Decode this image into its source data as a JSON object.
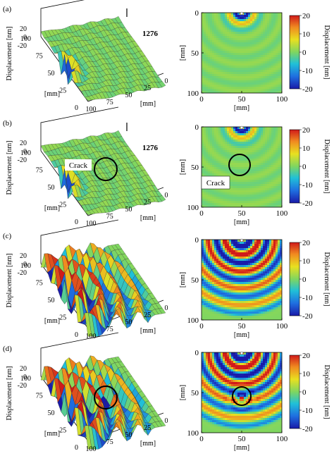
{
  "rows": [
    {
      "panel": "(a)",
      "surface_zlabel": "Displacement [nm]",
      "surface_z_ticks": [
        "20",
        "0",
        "-20"
      ],
      "surface_x_ticks": [
        "0",
        "25",
        "50",
        "75",
        "100"
      ],
      "surface_y_ticks": [
        "100",
        "75",
        "50",
        "25",
        "0"
      ],
      "surface_x_label": "[mm]",
      "surface_y_label": "[mm]",
      "peak_label": "1276",
      "crack_label": "",
      "map_x_ticks": [
        "0",
        "50",
        "100"
      ],
      "map_y_ticks": [
        "0",
        "50",
        "100"
      ],
      "map_xlabel": "[mm]",
      "map_ylabel": "[mm]",
      "cbar_ticks": [
        "20",
        "10",
        "0",
        "-10",
        "-20"
      ],
      "cbar_label": "Displacement [nm]"
    },
    {
      "panel": "(b)",
      "surface_zlabel": "Displacement [nm]",
      "surface_z_ticks": [
        "20",
        "0",
        "-20"
      ],
      "surface_x_ticks": [
        "0",
        "25",
        "50",
        "75",
        "100"
      ],
      "surface_y_ticks": [
        "100",
        "75",
        "50",
        "25",
        "0"
      ],
      "surface_x_label": "[mm]",
      "surface_y_label": "[mm]",
      "peak_label": "1276",
      "crack_label": "Crack",
      "map_x_ticks": [
        "0",
        "50",
        "100"
      ],
      "map_y_ticks": [
        "0",
        "50",
        "100"
      ],
      "map_xlabel": "[mm]",
      "map_ylabel": "[mm]",
      "map_crack_label": "Crack",
      "cbar_ticks": [
        "20",
        "10",
        "0",
        "-10",
        "-20"
      ],
      "cbar_label": "Displacement [nm]"
    },
    {
      "panel": "(c)",
      "surface_zlabel": "Displacement [nm]",
      "surface_z_ticks": [
        "20",
        "0",
        "-20"
      ],
      "surface_x_ticks": [
        "0",
        "25",
        "50",
        "75",
        "100"
      ],
      "surface_y_ticks": [
        "100",
        "75",
        "50",
        "25",
        "0"
      ],
      "surface_x_label": "[mm]",
      "surface_y_label": "[mm]",
      "peak_label": "",
      "crack_label": "",
      "map_x_ticks": [
        "0",
        "50",
        "100"
      ],
      "map_y_ticks": [
        "0",
        "50",
        "100"
      ],
      "map_xlabel": "[mm]",
      "map_ylabel": "[mm]",
      "cbar_ticks": [
        "20",
        "10",
        "0",
        "-10",
        "-20"
      ],
      "cbar_label": "Displacement [nm]"
    },
    {
      "panel": "(d)",
      "surface_zlabel": "Displacement [nm]",
      "surface_z_ticks": [
        "20",
        "0",
        "-20"
      ],
      "surface_x_ticks": [
        "0",
        "25",
        "50",
        "75",
        "100"
      ],
      "surface_y_ticks": [
        "100",
        "75",
        "50",
        "25",
        "0"
      ],
      "surface_x_label": "[mm]",
      "surface_y_label": "[mm]",
      "peak_label": "",
      "crack_label": "",
      "map_x_ticks": [
        "0",
        "50",
        "100"
      ],
      "map_y_ticks": [
        "0",
        "50",
        "100"
      ],
      "map_xlabel": "[mm]",
      "map_ylabel": "[mm]",
      "cbar_ticks": [
        "20",
        "10",
        "0",
        "-10",
        "-20"
      ],
      "cbar_label": "Displacement [nm]"
    }
  ],
  "colormap": [
    "#1a1aa8",
    "#1f6fe0",
    "#20c0d8",
    "#7fd660",
    "#e8e020",
    "#f08a20",
    "#d01a1a"
  ]
}
